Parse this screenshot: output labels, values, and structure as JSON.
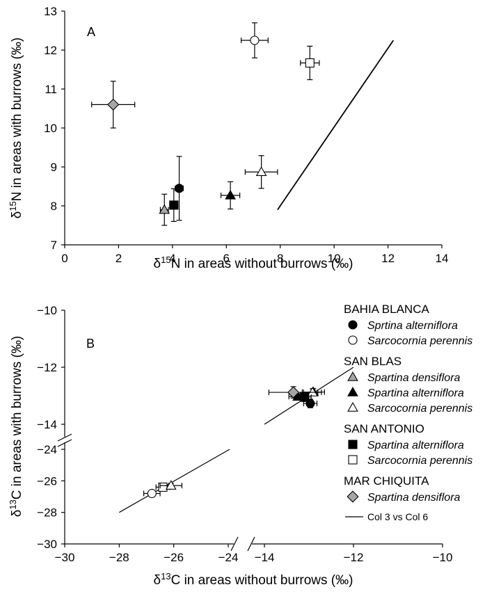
{
  "chart_data": [
    {
      "type": "scatter",
      "panel_label": "A",
      "xlabel": {
        "pre": "δ",
        "sup": "15",
        "post": "N in areas without burrows (‰)"
      },
      "ylabel": {
        "pre": "δ",
        "sup": "15",
        "post": "N in areas with burrows (‰)"
      },
      "xlim": [
        0,
        14
      ],
      "ylim": [
        7,
        13
      ],
      "xticks": [
        "0",
        "2",
        "4",
        "6",
        "8",
        "10",
        "12",
        "14"
      ],
      "yticks": [
        "7",
        "8",
        "9",
        "10",
        "11",
        "12",
        "13"
      ],
      "line": {
        "x": [
          7.9,
          12.2
        ],
        "y": [
          7.9,
          12.25
        ]
      },
      "points": [
        {
          "series": "bb_salt",
          "x": 4.25,
          "y": 8.45,
          "xerr": 0.15,
          "yerr": 0.82
        },
        {
          "series": "bb_sarc",
          "x": 7.05,
          "y": 12.25,
          "xerr": 0.5,
          "yerr": 0.45
        },
        {
          "series": "sb_dens",
          "x": 3.7,
          "y": 7.9,
          "xerr": 0.15,
          "yerr": 0.4
        },
        {
          "series": "sb_alt",
          "x": 6.15,
          "y": 8.27,
          "xerr": 0.35,
          "yerr": 0.35
        },
        {
          "series": "sb_sarc",
          "x": 7.3,
          "y": 8.87,
          "xerr": 0.6,
          "yerr": 0.42
        },
        {
          "series": "sa_alt",
          "x": 4.05,
          "y": 8.02,
          "xerr": 0.15,
          "yerr": 0.42
        },
        {
          "series": "sa_sarc",
          "x": 9.1,
          "y": 11.67,
          "xerr": 0.35,
          "yerr": 0.43
        },
        {
          "series": "mc_dens",
          "x": 1.8,
          "y": 10.6,
          "xerr": 0.8,
          "yerr": 0.6
        }
      ]
    },
    {
      "type": "scatter",
      "panel_label": "B",
      "xlabel": {
        "pre": "δ",
        "sup": "13",
        "post": "C in areas without burrows (‰)"
      },
      "ylabel": {
        "pre": "δ",
        "sup": "13",
        "post": "C in areas with burrows (‰)"
      },
      "broken_axes": true,
      "x_segments": [
        {
          "range": [
            -30,
            -24
          ],
          "ticks": [
            "−30",
            "−28",
            "−26",
            "−24"
          ]
        },
        {
          "range": [
            -14,
            -10
          ],
          "ticks": [
            "−14",
            "−12",
            "−10"
          ]
        }
      ],
      "y_segments": [
        {
          "range": [
            -30,
            -24
          ],
          "ticks": [
            "−30",
            "−28",
            "−26",
            "−24"
          ]
        },
        {
          "range": [
            -14,
            -10
          ],
          "ticks": [
            "−14",
            "−12",
            "−10"
          ]
        }
      ],
      "line": {
        "x": [
          -28,
          -12
        ],
        "y": [
          -28,
          -12
        ]
      },
      "points": [
        {
          "series": "bb_salt",
          "x": -12.97,
          "y": -13.27,
          "xerr": 0.15,
          "yerr": 0.15
        },
        {
          "series": "bb_sarc",
          "x": -26.8,
          "y": -26.8,
          "xerr": 0.3,
          "yerr": 0.15
        },
        {
          "series": "sb_dens",
          "x": -12.9,
          "y": -12.87,
          "xerr": 0.25,
          "yerr": 0.12
        },
        {
          "series": "sb_alt",
          "x": -13.25,
          "y": -13.03,
          "xerr": 0.2,
          "yerr": 0.1
        },
        {
          "series": "sb_sarc",
          "x": -12.92,
          "y": -12.88,
          "xerr": 0.2,
          "yerr": 0.12
        },
        {
          "series": "sa_alt",
          "x": -13.1,
          "y": -13.05,
          "xerr": 0.15,
          "yerr": 0.15
        },
        {
          "series": "sa_sarc",
          "x": -26.4,
          "y": -26.4,
          "xerr": 0.25,
          "yerr": 0.2
        },
        {
          "series": "sb_sarc",
          "x": -26.1,
          "y": -26.3,
          "xerr": 0.4,
          "yerr": 0.15
        },
        {
          "series": "mc_dens",
          "x": -13.35,
          "y": -12.88,
          "xerr": 0.55,
          "yerr": 0.2
        }
      ]
    }
  ],
  "legend": {
    "groups": [
      {
        "name": "BAHIA BLANCA",
        "items": [
          {
            "id": "bb_salt",
            "label": "Sprtina alterniflora",
            "marker": "circle",
            "fill": "#000000"
          },
          {
            "id": "bb_sarc",
            "label": "Sarcocornia perennis",
            "marker": "circle",
            "fill": "#ffffff"
          }
        ]
      },
      {
        "name": "SAN BLAS",
        "items": [
          {
            "id": "sb_dens",
            "label": "Spartina densiflora",
            "marker": "triangle",
            "fill": "#a6a6a6"
          },
          {
            "id": "sb_alt",
            "label": "Spartina alterniflora",
            "marker": "triangle",
            "fill": "#000000"
          },
          {
            "id": "sb_sarc",
            "label": "Sarcocornia perennis",
            "marker": "triangle",
            "fill": "#ffffff"
          }
        ]
      },
      {
        "name": "SAN ANTONIO",
        "items": [
          {
            "id": "sa_alt",
            "label": "Spartina alterniflora",
            "marker": "square",
            "fill": "#000000"
          },
          {
            "id": "sa_sarc",
            "label": "Sarcocornia perennis",
            "marker": "square",
            "fill": "#ffffff"
          }
        ]
      },
      {
        "name": "MAR CHIQUITA",
        "items": [
          {
            "id": "mc_dens",
            "label": "Spartina densiflora",
            "marker": "diamond",
            "fill": "#a6a6a6"
          }
        ]
      }
    ],
    "line_label": "Col 3 vs Col 6"
  }
}
